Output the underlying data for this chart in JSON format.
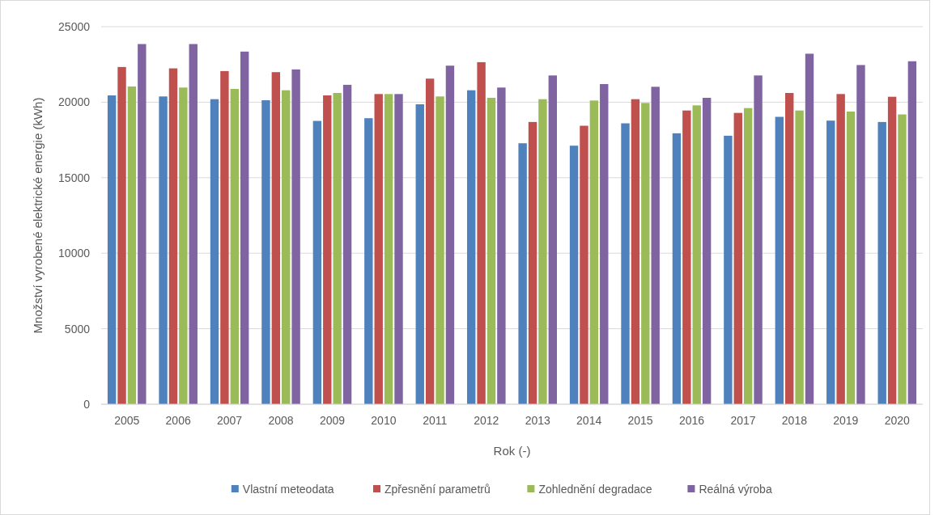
{
  "chart_data": {
    "type": "bar",
    "xlabel": "Rok (-)",
    "ylabel": "Množství vyrobené elektrické energie (kWh)",
    "categories": [
      "2005",
      "2006",
      "2007",
      "2008",
      "2009",
      "2010",
      "2011",
      "2012",
      "2013",
      "2014",
      "2015",
      "2016",
      "2017",
      "2018",
      "2019",
      "2020"
    ],
    "series": [
      {
        "name": "Vlastní meteodata",
        "color": "#4f81bd",
        "values": [
          20450,
          20380,
          20200,
          20130,
          18760,
          18940,
          19860,
          20790,
          17280,
          17120,
          18600,
          17940,
          17780,
          19030,
          18780,
          18690
        ]
      },
      {
        "name": "Zpřesnění parametrů",
        "color": "#c0504d",
        "values": [
          22330,
          22240,
          22060,
          21990,
          20450,
          20540,
          21560,
          22650,
          18690,
          18440,
          20200,
          19450,
          19290,
          20610,
          20540,
          20360
        ]
      },
      {
        "name": "Zohlednění degradace",
        "color": "#9bbb59",
        "values": [
          21040,
          20970,
          20880,
          20790,
          20610,
          20540,
          20380,
          20290,
          20200,
          20110,
          19950,
          19790,
          19610,
          19450,
          19380,
          19190
        ]
      },
      {
        "name": "Reálná výroba",
        "color": "#8064a2",
        "values": [
          23850,
          23850,
          23350,
          22170,
          21150,
          20540,
          22420,
          20970,
          21770,
          21200,
          21020,
          20290,
          21770,
          23210,
          22460,
          22710
        ]
      }
    ],
    "ylim": [
      0,
      25000
    ],
    "yticks": [
      0,
      5000,
      10000,
      15000,
      20000,
      25000
    ],
    "grid": "y",
    "legend": "bottom"
  }
}
